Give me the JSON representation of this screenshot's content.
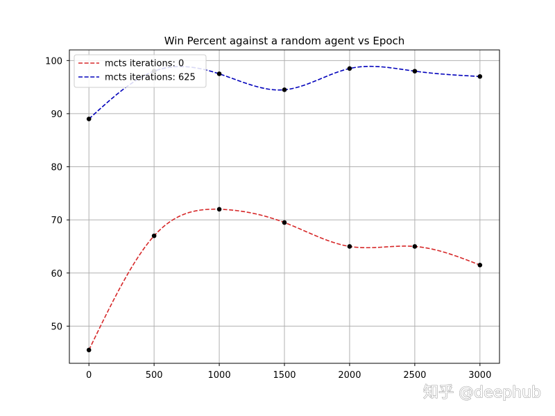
{
  "chart_data": {
    "type": "line",
    "title": "Win Percent against a random agent vs Epoch",
    "xlabel": "",
    "ylabel": "",
    "x": [
      0,
      500,
      1000,
      1500,
      2000,
      2500,
      3000
    ],
    "xlim": [
      -150,
      3150
    ],
    "ylim": [
      43,
      102
    ],
    "xticks": [
      0,
      500,
      1000,
      1500,
      2000,
      2500,
      3000
    ],
    "yticks": [
      50,
      60,
      70,
      80,
      90,
      100
    ],
    "grid": true,
    "legend_position": "top-left",
    "series": [
      {
        "name": "mcts iterations: 0",
        "color": "#d62728",
        "line_style": "dashed",
        "smooth": true,
        "values": [
          45.5,
          67,
          72,
          69.5,
          65,
          65,
          61.5
        ]
      },
      {
        "name": "mcts iterations: 625",
        "color": "#0000bb",
        "line_style": "dashed",
        "smooth": true,
        "values": [
          89,
          98,
          97.5,
          94.5,
          98.5,
          98,
          97
        ]
      }
    ],
    "marker_color": "#000000"
  },
  "watermark": {
    "text": "知乎 @deephub"
  }
}
